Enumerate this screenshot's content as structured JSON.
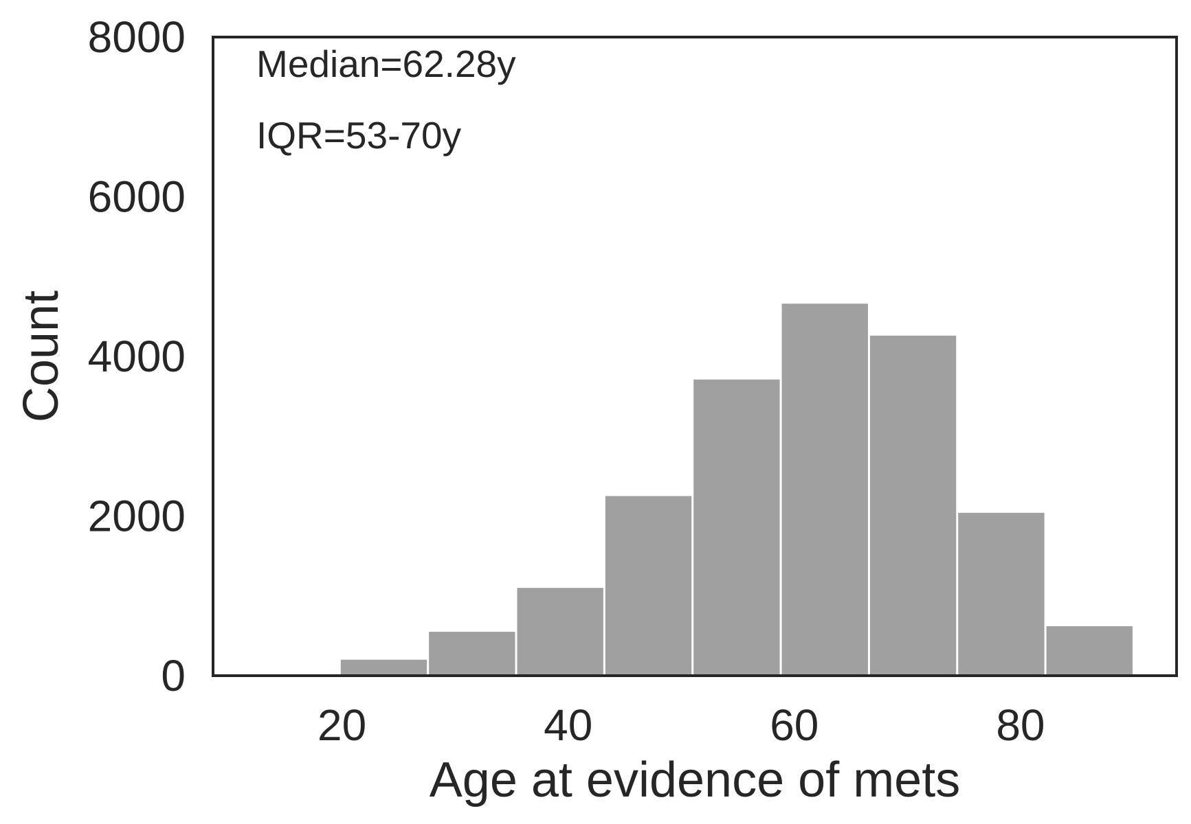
{
  "chart_data": {
    "type": "bar",
    "title": "",
    "xlabel": "Age at evidence of mets",
    "ylabel": "Count",
    "xlim": [
      8.6,
      93.8
    ],
    "ylim": [
      0,
      8000
    ],
    "x_ticks": [
      20,
      40,
      60,
      80
    ],
    "y_ticks": [
      0,
      2000,
      4000,
      6000,
      8000
    ],
    "grid": false,
    "legend": "none",
    "bar_color": "#a0a0a0",
    "bin_edges": [
      12.0,
      19.8,
      27.6,
      35.4,
      43.2,
      51.0,
      58.8,
      66.6,
      74.4,
      82.2,
      90.0
    ],
    "values": [
      10,
      200,
      550,
      1100,
      2250,
      3710,
      4660,
      4260,
      2040,
      620
    ],
    "annotations": [
      "Median=62.28y",
      "IQR=53-70y"
    ]
  }
}
